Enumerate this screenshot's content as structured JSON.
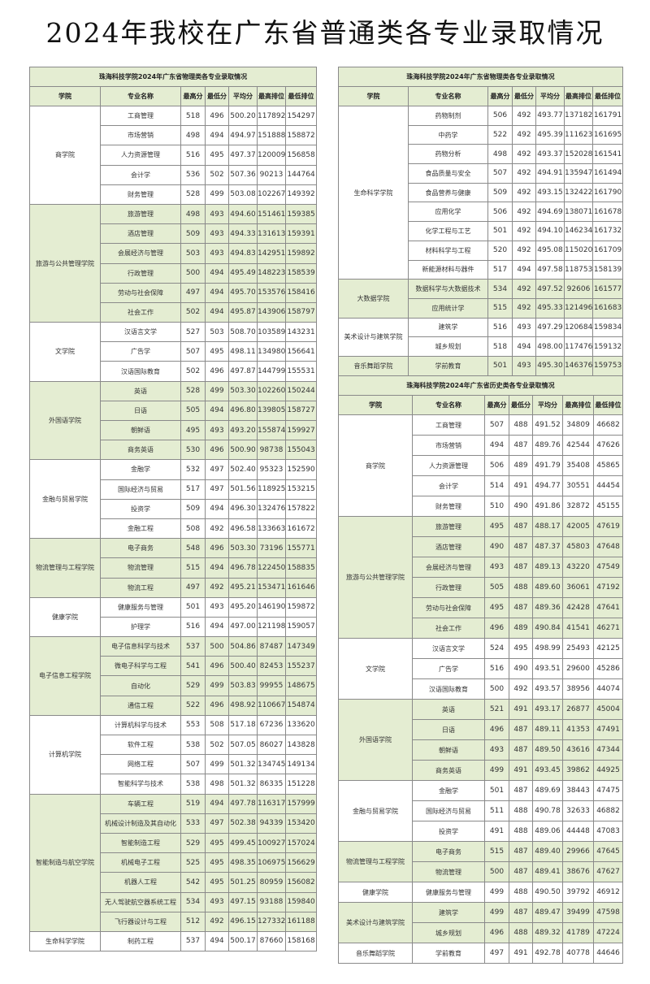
{
  "page_title": "2024年我校在广东省普通类各专业录取情况",
  "tables": [
    {
      "title": "珠海科技学院2024年广东省物理类各专业录取情况",
      "headers": [
        "学院",
        "专业名称",
        "最高分",
        "最低分",
        "平均分",
        "最高排位",
        "最低排位"
      ],
      "groups": [
        {
          "college": "商学院",
          "rows": [
            [
              "工商管理",
              "518",
              "496",
              "500.20",
              "117892",
              "154297"
            ],
            [
              "市场营销",
              "498",
              "494",
              "494.97",
              "151888",
              "158872"
            ],
            [
              "人力资源管理",
              "516",
              "495",
              "497.37",
              "120009",
              "156858"
            ],
            [
              "会计学",
              "536",
              "502",
              "507.36",
              "90213",
              "144764"
            ],
            [
              "财务管理",
              "528",
              "499",
              "503.08",
              "102267",
              "149392"
            ]
          ]
        },
        {
          "college": "旅游与公共管理学院",
          "rows": [
            [
              "旅游管理",
              "498",
              "493",
              "494.60",
              "151461",
              "159385"
            ],
            [
              "酒店管理",
              "509",
              "493",
              "494.33",
              "131613",
              "159391"
            ],
            [
              "会展经济与管理",
              "503",
              "493",
              "494.83",
              "142951",
              "159892"
            ],
            [
              "行政管理",
              "500",
              "494",
              "495.49",
              "148223",
              "158539"
            ],
            [
              "劳动与社会保障",
              "497",
              "494",
              "495.70",
              "153576",
              "158416"
            ],
            [
              "社会工作",
              "502",
              "494",
              "495.87",
              "143906",
              "158797"
            ]
          ]
        },
        {
          "college": "文学院",
          "rows": [
            [
              "汉语言文学",
              "527",
              "503",
              "508.70",
              "103589",
              "143231"
            ],
            [
              "广告学",
              "507",
              "495",
              "498.11",
              "134980",
              "156641"
            ],
            [
              "汉语国际教育",
              "502",
              "496",
              "497.87",
              "144799",
              "155531"
            ]
          ]
        },
        {
          "college": "外国语学院",
          "rows": [
            [
              "英语",
              "528",
              "499",
              "503.30",
              "102260",
              "150244"
            ],
            [
              "日语",
              "505",
              "494",
              "496.80",
              "139805",
              "158727"
            ],
            [
              "朝鲜语",
              "495",
              "493",
              "493.20",
              "155874",
              "159927"
            ],
            [
              "商务英语",
              "530",
              "496",
              "500.90",
              "98738",
              "155043"
            ]
          ]
        },
        {
          "college": "金融与贸易学院",
          "rows": [
            [
              "金融学",
              "532",
              "497",
              "502.40",
              "95323",
              "152590"
            ],
            [
              "国际经济与贸易",
              "517",
              "497",
              "501.56",
              "118925",
              "153215"
            ],
            [
              "投资学",
              "509",
              "494",
              "496.30",
              "132476",
              "157822"
            ],
            [
              "金融工程",
              "508",
              "492",
              "496.58",
              "133663",
              "161672"
            ]
          ]
        },
        {
          "college": "物流管理与工程学院",
          "rows": [
            [
              "电子商务",
              "548",
              "496",
              "503.30",
              "73196",
              "155771"
            ],
            [
              "物流管理",
              "515",
              "494",
              "496.78",
              "122450",
              "158835"
            ],
            [
              "物流工程",
              "497",
              "492",
              "495.21",
              "153471",
              "161646"
            ]
          ]
        },
        {
          "college": "健康学院",
          "rows": [
            [
              "健康服务与管理",
              "501",
              "493",
              "495.20",
              "146190",
              "159872"
            ],
            [
              "护理学",
              "516",
              "494",
              "497.00",
              "121198",
              "159057"
            ]
          ]
        },
        {
          "college": "电子信息工程学院",
          "rows": [
            [
              "电子信息科学与技术",
              "537",
              "500",
              "504.86",
              "87487",
              "147349"
            ],
            [
              "微电子科学与工程",
              "541",
              "496",
              "500.40",
              "82453",
              "155237"
            ],
            [
              "自动化",
              "529",
              "499",
              "503.83",
              "99955",
              "148675"
            ],
            [
              "通信工程",
              "522",
              "496",
              "498.92",
              "110667",
              "154874"
            ]
          ]
        },
        {
          "college": "计算机学院",
          "rows": [
            [
              "计算机科学与技术",
              "553",
              "508",
              "517.18",
              "67236",
              "133620"
            ],
            [
              "软件工程",
              "538",
              "502",
              "507.05",
              "86027",
              "143828"
            ],
            [
              "网络工程",
              "507",
              "499",
              "501.32",
              "134745",
              "149134"
            ],
            [
              "智能科学与技术",
              "538",
              "498",
              "501.32",
              "86335",
              "151228"
            ]
          ]
        },
        {
          "college": "智能制造与航空学院",
          "rows": [
            [
              "车辆工程",
              "519",
              "494",
              "497.78",
              "116317",
              "157999"
            ],
            [
              "机械设计制造及其自动化",
              "533",
              "497",
              "502.38",
              "94339",
              "153420"
            ],
            [
              "智能制造工程",
              "529",
              "495",
              "499.45",
              "100927",
              "157024"
            ],
            [
              "机械电子工程",
              "525",
              "495",
              "498.35",
              "106975",
              "156629"
            ],
            [
              "机器人工程",
              "542",
              "495",
              "501.25",
              "80959",
              "156082"
            ],
            [
              "无人驾驶航空器系统工程",
              "534",
              "493",
              "497.15",
              "93188",
              "159840"
            ],
            [
              "飞行器设计与工程",
              "512",
              "492",
              "496.15",
              "127332",
              "161188"
            ]
          ]
        },
        {
          "college": "生命科学学院",
          "rows": [
            [
              "制药工程",
              "537",
              "494",
              "500.17",
              "87660",
              "158168"
            ]
          ]
        }
      ]
    },
    {
      "title": "珠海科技学院2024年广东省物理类各专业录取情况",
      "headers": [
        "学院",
        "专业名称",
        "最高分",
        "最低分",
        "平均分",
        "最高排位",
        "最低排位"
      ],
      "groups": [
        {
          "college": "生命科学学院",
          "rows": [
            [
              "药物制剂",
              "506",
              "492",
              "493.77",
              "137182",
              "161791"
            ],
            [
              "中药学",
              "522",
              "492",
              "495.39",
              "111623",
              "161695"
            ],
            [
              "药物分析",
              "498",
              "492",
              "493.37",
              "152028",
              "161541"
            ],
            [
              "食品质量与安全",
              "507",
              "492",
              "494.91",
              "135947",
              "161494"
            ],
            [
              "食品营养与健康",
              "509",
              "492",
              "493.15",
              "132422",
              "161790"
            ],
            [
              "应用化学",
              "506",
              "492",
              "494.69",
              "138071",
              "161678"
            ],
            [
              "化学工程与工艺",
              "501",
              "492",
              "494.10",
              "146234",
              "161732"
            ],
            [
              "材料科学与工程",
              "520",
              "492",
              "495.08",
              "115020",
              "161709"
            ],
            [
              "新能源材料与器件",
              "517",
              "494",
              "497.58",
              "118753",
              "158139"
            ]
          ]
        },
        {
          "college": "大数据学院",
          "rows": [
            [
              "数据科学与大数据技术",
              "534",
              "492",
              "497.52",
              "92606",
              "161577"
            ],
            [
              "应用统计学",
              "515",
              "492",
              "495.33",
              "121496",
              "161683"
            ]
          ]
        },
        {
          "college": "美术设计与建筑学院",
          "rows": [
            [
              "建筑学",
              "516",
              "493",
              "497.29",
              "120684",
              "159834"
            ],
            [
              "城乡规划",
              "518",
              "494",
              "498.00",
              "117476",
              "159132"
            ]
          ]
        },
        {
          "college": "音乐舞蹈学院",
          "rows": [
            [
              "学前教育",
              "501",
              "493",
              "495.30",
              "146376",
              "159753"
            ]
          ]
        }
      ]
    },
    {
      "title": "珠海科技学院2024年广东省历史类各专业录取情况",
      "headers": [
        "学院",
        "专业名称",
        "最高分",
        "最低分",
        "平均分",
        "最高排位",
        "最低排位"
      ],
      "groups": [
        {
          "college": "商学院",
          "rows": [
            [
              "工商管理",
              "507",
              "488",
              "491.52",
              "34809",
              "46682"
            ],
            [
              "市场营销",
              "494",
              "487",
              "489.76",
              "42544",
              "47626"
            ],
            [
              "人力资源管理",
              "506",
              "489",
              "491.79",
              "35408",
              "45865"
            ],
            [
              "会计学",
              "514",
              "491",
              "494.77",
              "30551",
              "44454"
            ],
            [
              "财务管理",
              "510",
              "490",
              "491.86",
              "32872",
              "45155"
            ]
          ]
        },
        {
          "college": "旅游与公共管理学院",
          "rows": [
            [
              "旅游管理",
              "495",
              "487",
              "488.17",
              "42005",
              "47619"
            ],
            [
              "酒店管理",
              "490",
              "487",
              "487.37",
              "45803",
              "47648"
            ],
            [
              "会展经济与管理",
              "493",
              "487",
              "489.13",
              "43220",
              "47549"
            ],
            [
              "行政管理",
              "505",
              "488",
              "489.60",
              "36061",
              "47192"
            ],
            [
              "劳动与社会保障",
              "495",
              "487",
              "489.36",
              "42428",
              "47641"
            ],
            [
              "社会工作",
              "496",
              "489",
              "490.84",
              "41541",
              "46271"
            ]
          ]
        },
        {
          "college": "文学院",
          "rows": [
            [
              "汉语言文学",
              "524",
              "495",
              "498.99",
              "25493",
              "42125"
            ],
            [
              "广告学",
              "516",
              "490",
              "493.51",
              "29600",
              "45286"
            ],
            [
              "汉语国际教育",
              "500",
              "492",
              "493.57",
              "38956",
              "44074"
            ]
          ]
        },
        {
          "college": "外国语学院",
          "rows": [
            [
              "英语",
              "521",
              "491",
              "493.17",
              "26877",
              "45004"
            ],
            [
              "日语",
              "496",
              "487",
              "489.11",
              "41353",
              "47491"
            ],
            [
              "朝鲜语",
              "493",
              "487",
              "489.50",
              "43616",
              "47344"
            ],
            [
              "商务英语",
              "499",
              "491",
              "493.45",
              "39862",
              "44925"
            ]
          ]
        },
        {
          "college": "金融与贸易学院",
          "rows": [
            [
              "金融学",
              "501",
              "487",
              "489.69",
              "38443",
              "47475"
            ],
            [
              "国际经济与贸易",
              "511",
              "488",
              "490.78",
              "32633",
              "46882"
            ],
            [
              "投资学",
              "491",
              "488",
              "489.06",
              "44448",
              "47083"
            ]
          ]
        },
        {
          "college": "物流管理与工程学院",
          "rows": [
            [
              "电子商务",
              "515",
              "487",
              "489.40",
              "29966",
              "47645"
            ],
            [
              "物流管理",
              "500",
              "487",
              "489.41",
              "38676",
              "47627"
            ]
          ]
        },
        {
          "college": "健康学院",
          "rows": [
            [
              "健康服务与管理",
              "499",
              "488",
              "490.50",
              "39792",
              "46912"
            ]
          ]
        },
        {
          "college": "美术设计与建筑学院",
          "rows": [
            [
              "建筑学",
              "499",
              "487",
              "489.47",
              "39499",
              "47598"
            ],
            [
              "城乡规划",
              "496",
              "488",
              "489.32",
              "41789",
              "47224"
            ]
          ]
        },
        {
          "college": "音乐舞蹈学院",
          "rows": [
            [
              "学前教育",
              "497",
              "491",
              "492.78",
              "40778",
              "44646"
            ]
          ]
        }
      ]
    }
  ],
  "colors": {
    "group_shade": "#e4edd2",
    "border": "#8a8a8a"
  }
}
